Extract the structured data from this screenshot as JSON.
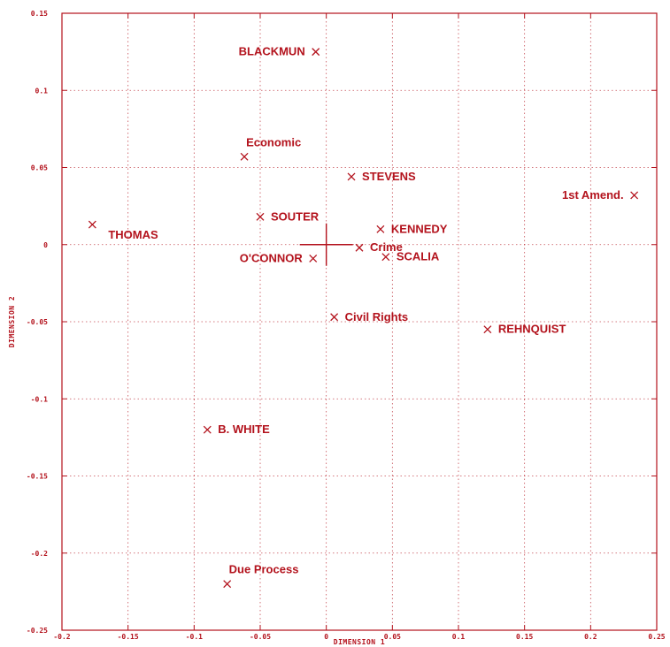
{
  "chart_data": {
    "type": "scatter",
    "xlabel": "DIMENSION 1",
    "ylabel": "DIMENSION 2",
    "xlim": [
      -0.2,
      0.25
    ],
    "ylim": [
      -0.25,
      0.15
    ],
    "x_ticks": [
      -0.2,
      -0.15,
      -0.1,
      -0.05,
      0,
      0.05,
      0.1,
      0.15,
      0.2,
      0.25
    ],
    "x_tick_labels": [
      "-0.2",
      "-0.15",
      "-0.1",
      "-0.05",
      "0",
      "0.05",
      "0.1",
      "0.15",
      "0.2",
      "0.25"
    ],
    "y_ticks": [
      0.15,
      0.1,
      0.05,
      0,
      -0.05,
      -0.1,
      -0.15,
      -0.2,
      -0.25
    ],
    "y_tick_labels": [
      "0.15",
      "0.1",
      "0.05",
      "0",
      "-0.05",
      "-0.1",
      "-0.15",
      "-0.2",
      "-0.25"
    ],
    "grid": true,
    "origin_marker": true,
    "points": [
      {
        "label": "BLACKMUN",
        "x": -0.008,
        "y": 0.125,
        "label_pos": "left"
      },
      {
        "label": "Economic",
        "x": -0.062,
        "y": 0.057,
        "label_pos": "above"
      },
      {
        "label": "STEVENS",
        "x": 0.019,
        "y": 0.044,
        "label_pos": "right"
      },
      {
        "label": "1st Amend.",
        "x": 0.233,
        "y": 0.032,
        "label_pos": "left"
      },
      {
        "label": "SOUTER",
        "x": -0.05,
        "y": 0.018,
        "label_pos": "right"
      },
      {
        "label": "THOMAS",
        "x": -0.177,
        "y": 0.013,
        "label_pos": "right-below"
      },
      {
        "label": "KENNEDY",
        "x": 0.041,
        "y": 0.01,
        "label_pos": "right"
      },
      {
        "label": "Crime",
        "x": 0.025,
        "y": -0.002,
        "label_pos": "right"
      },
      {
        "label": "O'CONNOR",
        "x": -0.01,
        "y": -0.009,
        "label_pos": "left"
      },
      {
        "label": "SCALIA",
        "x": 0.045,
        "y": -0.008,
        "label_pos": "right"
      },
      {
        "label": "Civil Rights",
        "x": 0.006,
        "y": -0.047,
        "label_pos": "right"
      },
      {
        "label": "REHNQUIST",
        "x": 0.122,
        "y": -0.055,
        "label_pos": "right"
      },
      {
        "label": "B. WHITE",
        "x": -0.09,
        "y": -0.12,
        "label_pos": "right"
      },
      {
        "label": "Due Process",
        "x": -0.075,
        "y": -0.22,
        "label_pos": "above"
      }
    ]
  },
  "colors": {
    "ink": "#b3121c",
    "background": "#ffffff"
  }
}
